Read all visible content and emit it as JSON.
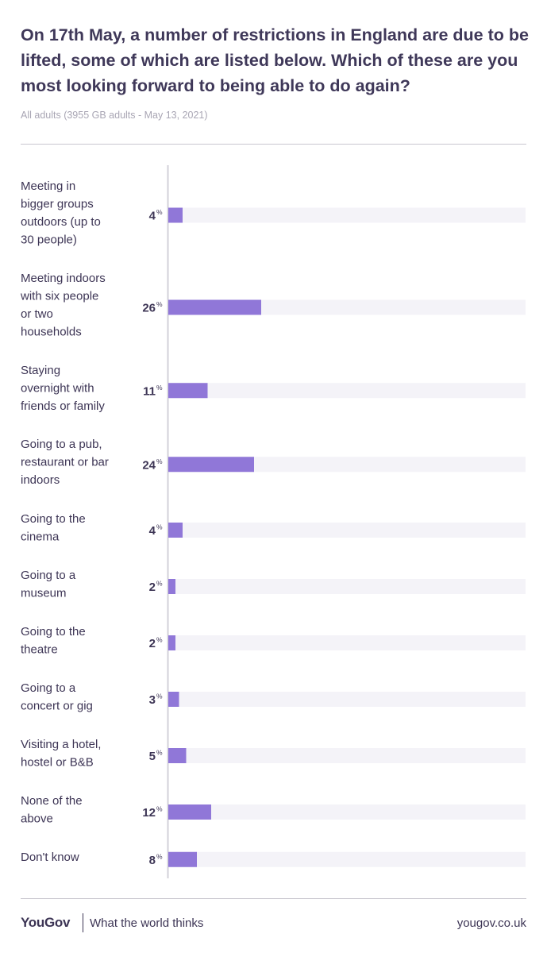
{
  "header": {
    "title": "On 17th May, a number of restrictions in England are due to be lifted, some of which are listed below. Which of these are you most looking forward to being able to do again?",
    "subtitle": "All adults (3955 GB adults - May 13, 2021)"
  },
  "colors": {
    "bar": "#9077d8",
    "track": "#f4f3f8",
    "axis": "#d3d1d9",
    "text": "#3d3555"
  },
  "chart_data": {
    "type": "bar",
    "orientation": "horizontal",
    "categories": [
      "Meeting in bigger groups outdoors (up to 30 people)",
      "Meeting indoors with six people or two households",
      "Staying overnight with friends or family",
      "Going to a pub, restaurant or bar indoors",
      "Going to the cinema",
      "Going to a museum",
      "Going to the theatre",
      "Going to a concert or gig",
      "Visiting a hotel, hostel or B&B",
      "None of the above",
      "Don't know"
    ],
    "category_lines": [
      [
        "Meeting in",
        "bigger groups",
        "outdoors (up to",
        "30 people)"
      ],
      [
        "Meeting indoors",
        "with six people",
        "or two",
        "households"
      ],
      [
        "Staying",
        "overnight with",
        "friends or family"
      ],
      [
        "Going to a pub,",
        "restaurant or bar",
        "indoors"
      ],
      [
        "Going to the",
        "cinema"
      ],
      [
        "Going to a",
        "museum"
      ],
      [
        "Going to the",
        "theatre"
      ],
      [
        "Going to a",
        "concert or gig"
      ],
      [
        "Visiting a hotel,",
        "hostel or B&B"
      ],
      [
        "None of the",
        "above"
      ],
      [
        "Don't know"
      ]
    ],
    "values": [
      4,
      26,
      11,
      24,
      4,
      2,
      2,
      3,
      5,
      12,
      8
    ],
    "unit": "%",
    "xlim": [
      0,
      100
    ],
    "grid": false,
    "legend": "none"
  },
  "footer": {
    "brand": "YouGov",
    "tagline": "What the world thinks",
    "site": "yougov.co.uk"
  }
}
